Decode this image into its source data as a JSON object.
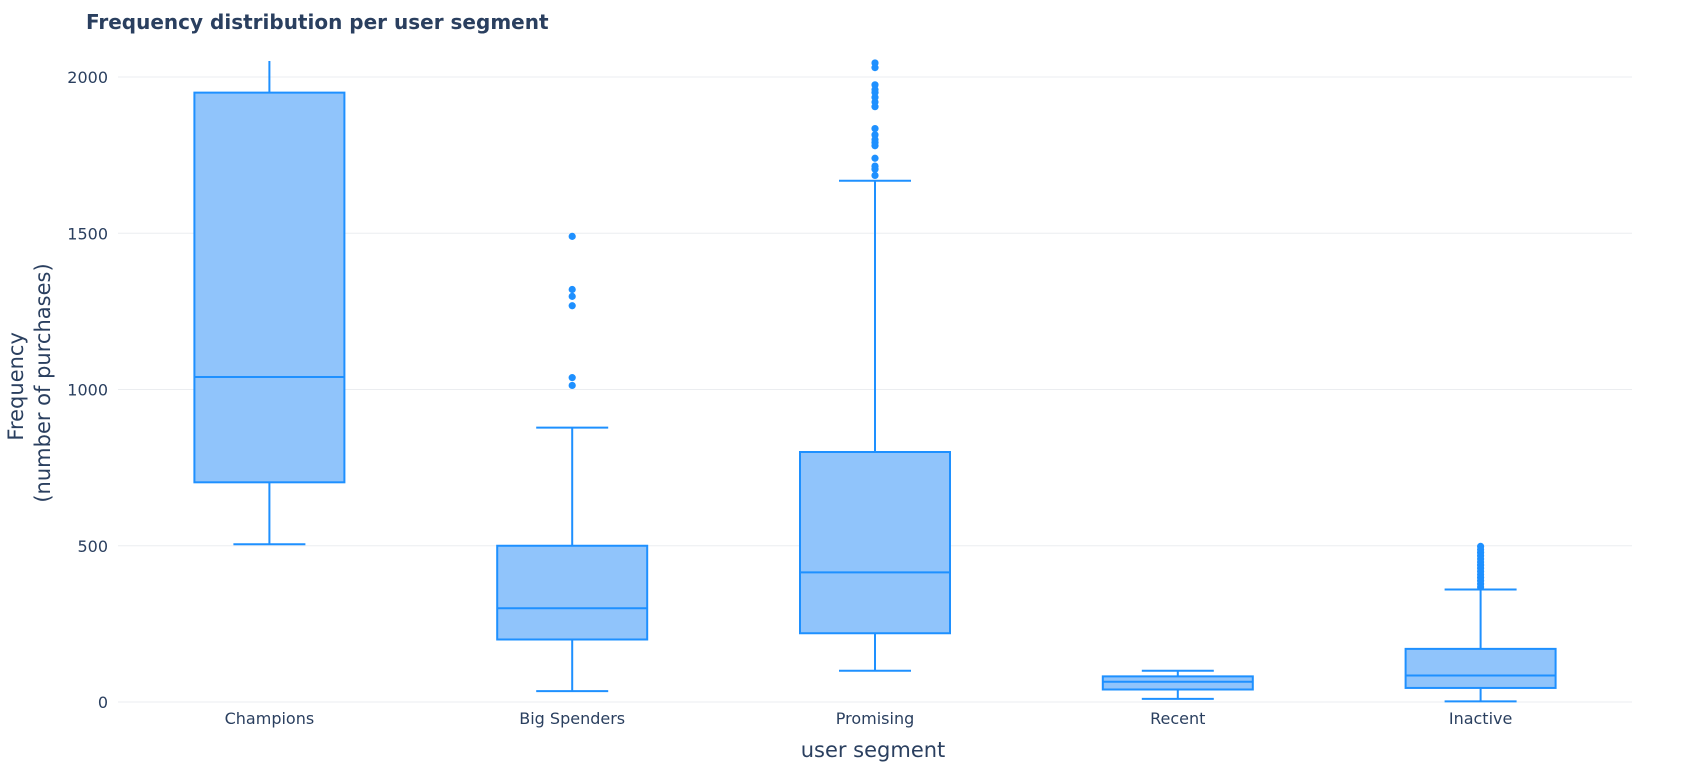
{
  "chart_data": {
    "type": "box",
    "title": "Frequency distribution per user segment",
    "xlabel": "user segment",
    "ylabel_lines": [
      "Frequency",
      "(number of purchases)"
    ],
    "ylim": [
      0,
      2000
    ],
    "visible_ymax": 2050,
    "yticks": [
      0,
      500,
      1000,
      1500,
      2000
    ],
    "ytick_labels": [
      "0",
      "500",
      "1000",
      "1500",
      "2000"
    ],
    "grid": true,
    "legend": "none",
    "colors": {
      "line": "#1e90ff",
      "fill": "#90c4fb",
      "grid": "#ebedf0",
      "text": "#2a3f5f"
    },
    "categories": [
      "Champions",
      "Big Spenders",
      "Promising",
      "Recent",
      "Inactive"
    ],
    "boxes": [
      {
        "category": "Champions",
        "whisker_low": 505,
        "q1": 703,
        "median": 1040,
        "q3": 1950,
        "whisker_high": 2060,
        "outliers": []
      },
      {
        "category": "Big Spenders",
        "whisker_low": 35,
        "q1": 200,
        "median": 300,
        "q3": 500,
        "whisker_high": 878,
        "outliers": [
          1013,
          1038,
          1268,
          1298,
          1320,
          1490
        ]
      },
      {
        "category": "Promising",
        "whisker_low": 100,
        "q1": 220,
        "median": 415,
        "q3": 800,
        "whisker_high": 1668,
        "outliers": [
          1685,
          1705,
          1715,
          1740,
          1780,
          1790,
          1800,
          1815,
          1835,
          1905,
          1920,
          1935,
          1950,
          1960,
          1975,
          2030,
          2045
        ]
      },
      {
        "category": "Recent",
        "whisker_low": 10,
        "q1": 40,
        "median": 65,
        "q3": 82,
        "whisker_high": 100,
        "outliers": []
      },
      {
        "category": "Inactive",
        "whisker_low": 2,
        "q1": 45,
        "median": 85,
        "q3": 170,
        "whisker_high": 360,
        "outliers": [
          368,
          378,
          388,
          398,
          408,
          418,
          428,
          438,
          448,
          458,
          468,
          478,
          488,
          498
        ]
      }
    ]
  }
}
